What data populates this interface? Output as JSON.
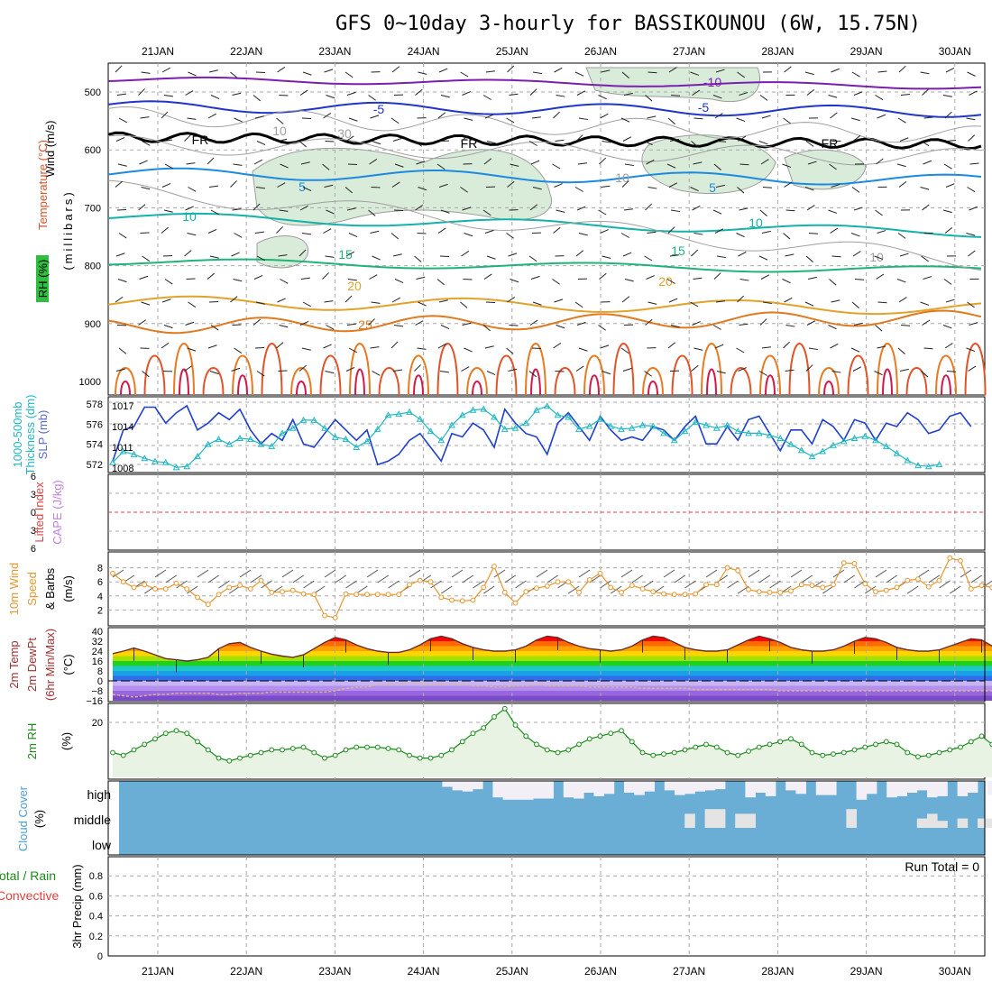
{
  "title": "GFS 0~10day 3-hourly for BASSIKOUNOU (6W, 15.75N)",
  "dates": [
    "21JAN",
    "22JAN",
    "23JAN",
    "24JAN",
    "25JAN",
    "26JAN",
    "27JAN",
    "28JAN",
    "29JAN",
    "30JAN"
  ],
  "colors": {
    "rh_fill": "#d9ecd9",
    "slp": "#1f3fcf",
    "thickness": "#20b8c0",
    "wind10m": "#e8952a",
    "rh2m": "#1a8a1a",
    "cloud": "#6aaed6",
    "cloud_gap": "#f2f0f6",
    "lifted_index": "#e04040",
    "cape": "#c080e0"
  },
  "panels": {
    "upper": {
      "label_wind": "Wind (m/s)",
      "label_temp": "Temperature (°C)",
      "label_rh": "RH (%)",
      "label_mb": "(millibars)",
      "yticks": [
        "500",
        "600",
        "700",
        "800",
        "900",
        "1000"
      ],
      "contour_labels": [
        "-10",
        "-5",
        "-5",
        "FR",
        "FR",
        "FR",
        "5",
        "5",
        "10",
        "10",
        "15",
        "15",
        "20",
        "20",
        "25",
        "10",
        "10",
        "30",
        "10"
      ]
    },
    "slp": {
      "label_thick": "1000-500mb",
      "label_thick2": "Thickness (dm)",
      "label_slp": "SLP (mb)",
      "left_ticks": [
        "578",
        "576",
        "574",
        "572"
      ],
      "right_ticks": [
        "1017",
        "1014",
        "1011",
        "1008"
      ]
    },
    "li": {
      "label_cape": "CAPE (J/kg)",
      "label_li": "Lifted Index",
      "ticks": [
        "6",
        "3",
        "0",
        "-3",
        "-6"
      ]
    },
    "wind10": {
      "label": "10m Wind",
      "label2": "Speed",
      "label3": "& Barbs",
      "unit": "(m/s)",
      "ticks": [
        "8",
        "6",
        "4",
        "2"
      ]
    },
    "temp2m": {
      "label": "2m Temp",
      "label2": "2m DewPt",
      "label3": "(6hr Min/Max)",
      "unit": "(°C)",
      "ticks": [
        "40",
        "32",
        "24",
        "16",
        "8",
        "0",
        "-8",
        "-16"
      ]
    },
    "rh2m": {
      "label": "2m RH",
      "unit": "(%)",
      "ticks": [
        "20"
      ]
    },
    "cloud": {
      "label": "Cloud Cover",
      "unit": "(%)",
      "levels": [
        "high",
        "middle",
        "low"
      ]
    },
    "precip": {
      "label_total": "Total / Rain",
      "label_conv": "Convective",
      "label_axis": "3hr Precip (mm)",
      "run_total": "Run Total = 0",
      "ticks": [
        "0.8",
        "0.6",
        "0.4",
        "0.2",
        "0"
      ]
    }
  },
  "chart_data": [
    {
      "type": "line",
      "panel": "SLP and 1000-500mb thickness",
      "x_start": "20JAN 15Z",
      "x_step_hours": 3,
      "series": [
        {
          "name": "SLP (mb)",
          "axis": "right",
          "ylim": [
            1008,
            1017
          ],
          "values": [
            1009,
            1013.5,
            1014,
            1016.8,
            1016.8,
            1014.5,
            1016,
            1017,
            1013.5,
            1014.5,
            1016,
            1015,
            1016.5,
            1013.5,
            1011.5,
            1013,
            1012,
            1015,
            1011.5,
            1011,
            1013,
            1015,
            1013.5,
            1012,
            1013.5,
            1008.5,
            1009,
            1010,
            1012,
            1013,
            1011,
            1009,
            1013,
            1012.5,
            1014.5,
            1013.5,
            1011,
            1016.5,
            1014.5,
            1013,
            1012.5,
            1010,
            1014.5,
            1016,
            1014,
            1012,
            1015.5,
            1013.5,
            1012,
            1012.5,
            1012,
            1014,
            1013.5,
            1012,
            1014,
            1015.5,
            1011.5,
            1011.5,
            1014,
            1012,
            1015,
            1015.5,
            1013,
            1010.5,
            1013.5,
            1013.5,
            1011.5,
            1015,
            1014,
            1012,
            1015,
            1014.5,
            1012,
            1014.5,
            1014,
            1016,
            1015,
            1013,
            1013.5,
            1015.5,
            1016,
            1014
          ]
        },
        {
          "name": "1000-500mb Thickness (dm)",
          "axis": "left",
          "ylim": [
            571.5,
            578.5
          ],
          "values": [
            572.2,
            573.3,
            573,
            572.6,
            572.3,
            572.2,
            571.7,
            571.8,
            572.8,
            574,
            574.5,
            574,
            574.6,
            574.5,
            574,
            573.8,
            575.1,
            575.6,
            576.4,
            576.4,
            575.6,
            574.7,
            574.5,
            573.7,
            574.3,
            575.5,
            576.9,
            577,
            577.2,
            576.5,
            575.3,
            574.4,
            575.9,
            576.9,
            577.4,
            577.5,
            576.7,
            575.5,
            575.6,
            576.1,
            577.4,
            577.8,
            576.9,
            576.7,
            575.5,
            575.8,
            576.5,
            575.8,
            575.5,
            575.6,
            575.9,
            575.8,
            575.1,
            574.4,
            575.3,
            576.2,
            575.9,
            575.6,
            575.9,
            575.3,
            575.1,
            575.1,
            574.9,
            574.6,
            574,
            573.4,
            572.8,
            573.3,
            573.9,
            574.3,
            574.6,
            574.8,
            574.4,
            573.8,
            573.1,
            572.4,
            571.9,
            571.8,
            572
          ]
        }
      ]
    },
    {
      "type": "line",
      "panel": "Lifted Index / CAPE",
      "ylim": [
        -6,
        6
      ],
      "series": [
        {
          "name": "Lifted Index",
          "values": [
            0
          ]
        }
      ]
    },
    {
      "type": "line",
      "panel": "10m Wind Speed",
      "unit": "m/s",
      "ylim": [
        0,
        10
      ],
      "series": [
        {
          "name": "10m Wind Speed",
          "values": [
            7.2,
            6,
            5.2,
            5.6,
            5,
            5,
            5.8,
            5,
            3.8,
            2.8,
            4.2,
            5.2,
            5.5,
            5,
            6.2,
            4.5,
            4.6,
            4.8,
            4.3,
            4.2,
            1.2,
            0.9,
            4.3,
            4.2,
            4.2,
            4.2,
            4.2,
            4.2,
            5.6,
            6.2,
            6,
            3.8,
            3.4,
            3.3,
            3.4,
            5.2,
            8.2,
            4.5,
            3,
            4.6,
            5.1,
            5.4,
            6,
            6,
            4.5,
            6.3,
            7.2,
            5.2,
            4.5,
            5.5,
            5,
            4.6,
            4.3,
            4.2,
            4.2,
            4.3,
            5.6,
            5.6,
            8,
            7.6,
            4.9,
            4.6,
            4.5,
            4.5,
            4.7,
            5.6,
            5.5,
            5.2,
            5.6,
            8.7,
            8.6,
            5.7,
            4.6,
            4.8,
            5.2,
            6.2,
            6.4,
            5.3,
            6.2,
            9.4,
            9,
            5,
            5.5,
            5.2,
            5.2,
            5.8,
            7.2
          ]
        }
      ]
    },
    {
      "type": "area",
      "panel": "2m Temp / DewPt",
      "unit": "°C",
      "ylim": [
        -16,
        40
      ],
      "series": [
        {
          "name": "2m Temp",
          "values": [
            22,
            24,
            26.5,
            24,
            21,
            18,
            17,
            16,
            17,
            19,
            26,
            30,
            31,
            27,
            24,
            21.5,
            20,
            19,
            21,
            26,
            31,
            35,
            33,
            29,
            26,
            24,
            23,
            23,
            25,
            29,
            34,
            36,
            34,
            30,
            27,
            25,
            24,
            24,
            25,
            28,
            33,
            36,
            35,
            31,
            28,
            26,
            25,
            24,
            25,
            28,
            33,
            36,
            35,
            31,
            27,
            25,
            24,
            24,
            25,
            29,
            33,
            36,
            34,
            31,
            27,
            25,
            24,
            24,
            25,
            28,
            32,
            35,
            34,
            31,
            27,
            25,
            24,
            24,
            25,
            28,
            31,
            34,
            33,
            28,
            24,
            22,
            21
          ]
        },
        {
          "name": "2m DewPt",
          "values": [
            -11,
            -12,
            -13,
            -12,
            -11,
            -11,
            -10,
            -10,
            -10,
            -10,
            -11,
            -11,
            -10,
            -10,
            -10,
            -9,
            -9,
            -9,
            -9,
            -9,
            -9,
            -8,
            -6,
            -5,
            -5,
            -3,
            -3,
            -2,
            -2,
            -2,
            -3,
            -3,
            -3,
            -3,
            -4,
            -4,
            -5,
            -5,
            -4,
            -4,
            -3,
            -4,
            -4,
            -4,
            -4,
            -5,
            -5,
            -5,
            -5,
            -5,
            -6,
            -6,
            -6,
            -6,
            -6,
            -7,
            -7,
            -7,
            -7,
            -7,
            -7,
            -7,
            -7,
            -8,
            -8,
            -8,
            -8,
            -8,
            -8,
            -8,
            -8,
            -8,
            -8,
            -8,
            -8,
            -8,
            -8,
            -8,
            -8,
            -8,
            -8,
            -8,
            -8,
            -8,
            -8,
            -8,
            -8
          ]
        }
      ]
    },
    {
      "type": "area",
      "panel": "2m RH",
      "unit": "%",
      "ylim": [
        0,
        27
      ],
      "series": [
        {
          "name": "2m RH",
          "values": [
            9,
            8,
            10,
            12,
            14,
            16,
            17,
            16,
            13,
            10,
            7,
            6,
            7,
            8,
            9,
            10,
            10,
            10.5,
            11,
            9,
            7,
            8,
            10,
            11,
            11,
            11,
            10.5,
            10,
            8,
            7,
            7,
            8,
            10,
            13,
            16,
            18,
            22,
            25,
            19,
            15,
            12,
            10,
            9,
            10,
            12,
            14,
            15,
            16,
            17,
            13,
            9,
            8,
            8.5,
            9,
            10,
            11,
            12,
            11,
            9,
            8,
            9.5,
            11,
            12,
            13,
            14,
            12,
            9,
            8,
            8.5,
            9,
            10,
            11,
            12,
            13,
            12,
            9,
            7.5,
            8,
            9,
            10,
            11,
            13,
            15,
            12,
            8,
            7.5,
            9,
            10,
            11,
            12.5,
            14
          ]
        }
      ]
    },
    {
      "type": "bar",
      "panel": "Cloud Cover",
      "unit": "%",
      "series": [
        {
          "name": "high",
          "values": [
            100,
            100,
            100,
            100,
            100,
            100,
            100,
            100,
            100,
            100,
            100,
            100,
            100,
            100,
            100,
            100,
            100,
            100,
            100,
            100,
            100,
            100,
            100,
            100,
            100,
            100,
            100,
            100,
            100,
            100,
            100,
            100,
            100,
            100,
            100,
            100,
            100,
            100,
            100,
            100,
            100,
            100,
            100,
            100,
            100,
            100,
            100,
            100,
            100,
            100,
            100,
            100,
            100,
            100,
            100,
            100,
            100,
            100,
            100,
            100,
            100,
            100,
            100,
            100,
            100,
            100,
            100,
            100,
            100,
            100,
            100,
            100,
            100,
            100,
            100,
            100,
            100,
            100,
            100,
            100,
            100,
            100,
            100,
            100,
            100,
            100,
            100
          ]
        },
        {
          "name": "high-clear",
          "values": [
            0,
            0,
            0,
            0,
            0,
            0,
            0,
            0,
            0,
            0,
            0,
            0,
            0,
            0,
            0,
            0,
            0,
            0,
            0,
            0,
            0,
            0,
            0,
            0,
            0,
            0,
            0,
            0,
            0,
            0,
            0,
            0,
            25,
            40,
            45,
            35,
            0,
            70,
            80,
            80,
            80,
            75,
            75,
            0,
            70,
            75,
            50,
            65,
            55,
            0,
            50,
            60,
            45,
            0,
            40,
            60,
            55,
            45,
            40,
            35,
            0,
            0,
            70,
            50,
            65,
            0,
            40,
            55,
            0,
            60,
            60,
            0,
            0,
            80,
            55,
            0,
            70,
            65,
            50,
            40,
            70,
            65,
            0,
            65,
            50,
            0,
            60
          ]
        },
        {
          "name": "middle-clear",
          "values": [
            0,
            0,
            0,
            0,
            0,
            0,
            0,
            0,
            0,
            0,
            0,
            0,
            0,
            0,
            0,
            0,
            0,
            0,
            0,
            0,
            0,
            0,
            0,
            0,
            0,
            0,
            0,
            0,
            0,
            0,
            0,
            0,
            0,
            0,
            0,
            0,
            0,
            0,
            0,
            0,
            0,
            0,
            0,
            0,
            0,
            0,
            0,
            0,
            0,
            0,
            0,
            0,
            0,
            0,
            0,
            0,
            60,
            0,
            80,
            80,
            0,
            60,
            60,
            0,
            0,
            0,
            0,
            0,
            0,
            0,
            0,
            0,
            80,
            0,
            0,
            0,
            0,
            0,
            0,
            40,
            60,
            30,
            0,
            40,
            0,
            40,
            40
          ]
        }
      ]
    },
    {
      "type": "bar",
      "panel": "3hr Precip",
      "unit": "mm",
      "ylim": [
        0,
        0.9
      ],
      "series": [
        {
          "name": "Total / Rain",
          "values": [
            0
          ]
        }
      ]
    }
  ]
}
